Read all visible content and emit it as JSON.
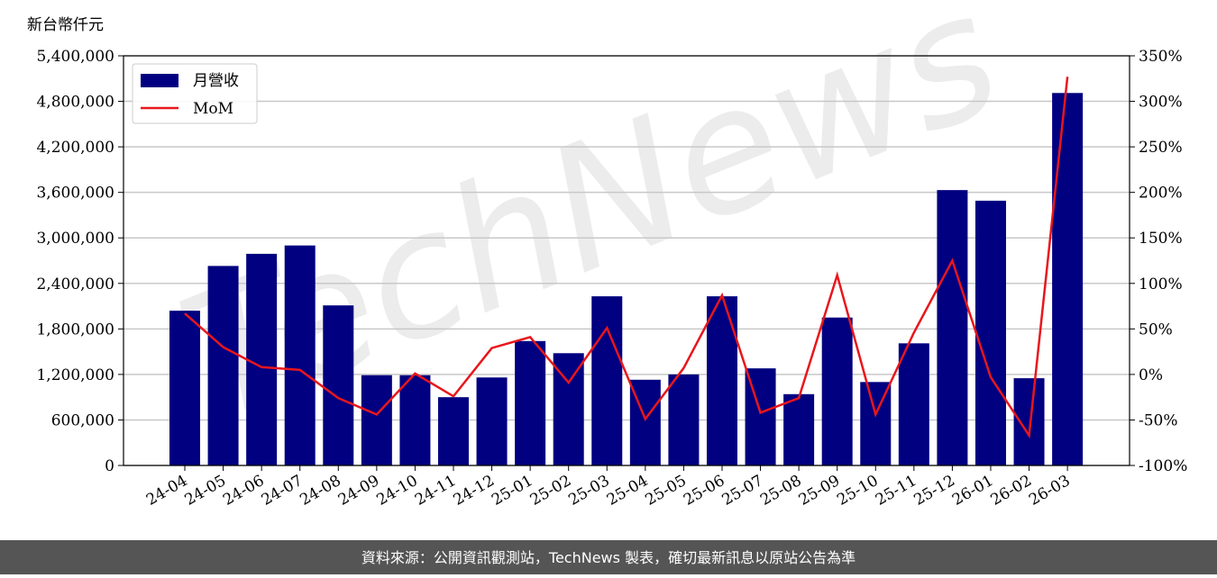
{
  "chart_data": {
    "type": "bar-line",
    "ylabel": "新台幣仟元",
    "watermark": "TechNews",
    "source": "資料來源：公開資訊觀測站，TechNews 製表，確切最新訊息以原站公告為準",
    "categories": [
      "24-04",
      "24-05",
      "24-06",
      "24-07",
      "24-08",
      "24-09",
      "24-10",
      "24-11",
      "24-12",
      "25-01",
      "25-02",
      "25-03",
      "25-04",
      "25-05",
      "25-06",
      "25-07",
      "25-08",
      "25-09",
      "25-10",
      "25-11",
      "25-12",
      "26-01",
      "26-02",
      "26-03"
    ],
    "series": [
      {
        "name": "月營收",
        "type": "bar",
        "color": "#000080",
        "values": [
          2040000,
          2630000,
          2790000,
          2900000,
          2110000,
          1190000,
          1190000,
          900000,
          1160000,
          1640000,
          1480000,
          2230000,
          1130000,
          1200000,
          2230000,
          1280000,
          940000,
          1950000,
          1100000,
          1610000,
          3630000,
          3490000,
          1150000,
          4910000
        ]
      },
      {
        "name": "MoM",
        "type": "line",
        "axis": "y2",
        "color": "#e8161c",
        "values": [
          67,
          30,
          8,
          5,
          -26,
          -44,
          1,
          -24,
          29,
          41,
          -9,
          51,
          -49,
          7,
          87,
          -42,
          -26,
          109,
          -44,
          46,
          125,
          -3,
          -67,
          327
        ]
      }
    ],
    "ylim": [
      0,
      5400000
    ],
    "yticks": [
      0,
      {
        "value": 600000,
        "label": "600,000"
      },
      {
        "value": 1200000,
        "label": "1,200,000"
      },
      {
        "value": 1800000,
        "label": "1,800,000"
      },
      {
        "value": 2400000,
        "label": "2,400,000"
      },
      {
        "value": 3000000,
        "label": "3,000,000"
      },
      {
        "value": 3600000,
        "label": "3,600,000"
      },
      {
        "value": 4200000,
        "label": "4,200,000"
      },
      {
        "value": 4800000,
        "label": "4,800,000"
      },
      {
        "value": 5400000,
        "label": "5,400,000"
      }
    ],
    "y2lim": [
      -100,
      350
    ],
    "y2ticks": [
      {
        "value": -100,
        "label": "-100%"
      },
      {
        "value": -50,
        "label": "-50%"
      },
      {
        "value": 0,
        "label": "0%"
      },
      {
        "value": 50,
        "label": "50%"
      },
      {
        "value": 100,
        "label": "100%"
      },
      {
        "value": 150,
        "label": "150%"
      },
      {
        "value": 200,
        "label": "200%"
      },
      {
        "value": 250,
        "label": "250%"
      },
      {
        "value": 300,
        "label": "300%"
      },
      {
        "value": 350,
        "label": "350%"
      }
    ],
    "grid": true,
    "legend": "upper left"
  }
}
